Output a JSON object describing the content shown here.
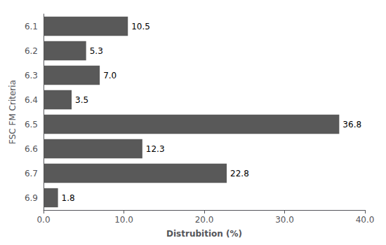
{
  "chart_data": {
    "type": "bar",
    "orientation": "horizontal",
    "categories": [
      "6.1",
      "6.2",
      "6.3",
      "6.4",
      "6.5",
      "6.6",
      "6.7",
      "6.9"
    ],
    "values": [
      10.5,
      5.3,
      7.0,
      3.5,
      36.8,
      12.3,
      22.8,
      1.8
    ],
    "value_labels": [
      "10.5",
      "5.3",
      "7.0",
      "3.5",
      "36.8",
      "12.3",
      "22.8",
      "1.8"
    ],
    "data_labels": true,
    "color": "#595959",
    "xlabel": "Distrubition (%)",
    "ylabel": "FSC FM Criteria",
    "xlim": [
      0,
      40.0
    ],
    "xticks": [
      {
        "value": 0.0,
        "label": "0.0"
      },
      {
        "value": 10.0,
        "label": "10.0"
      },
      {
        "value": 20.0,
        "label": "20.0"
      },
      {
        "value": 30.0,
        "label": "30.0"
      },
      {
        "value": 40.0,
        "label": "40.0"
      }
    ],
    "grid": false
  }
}
